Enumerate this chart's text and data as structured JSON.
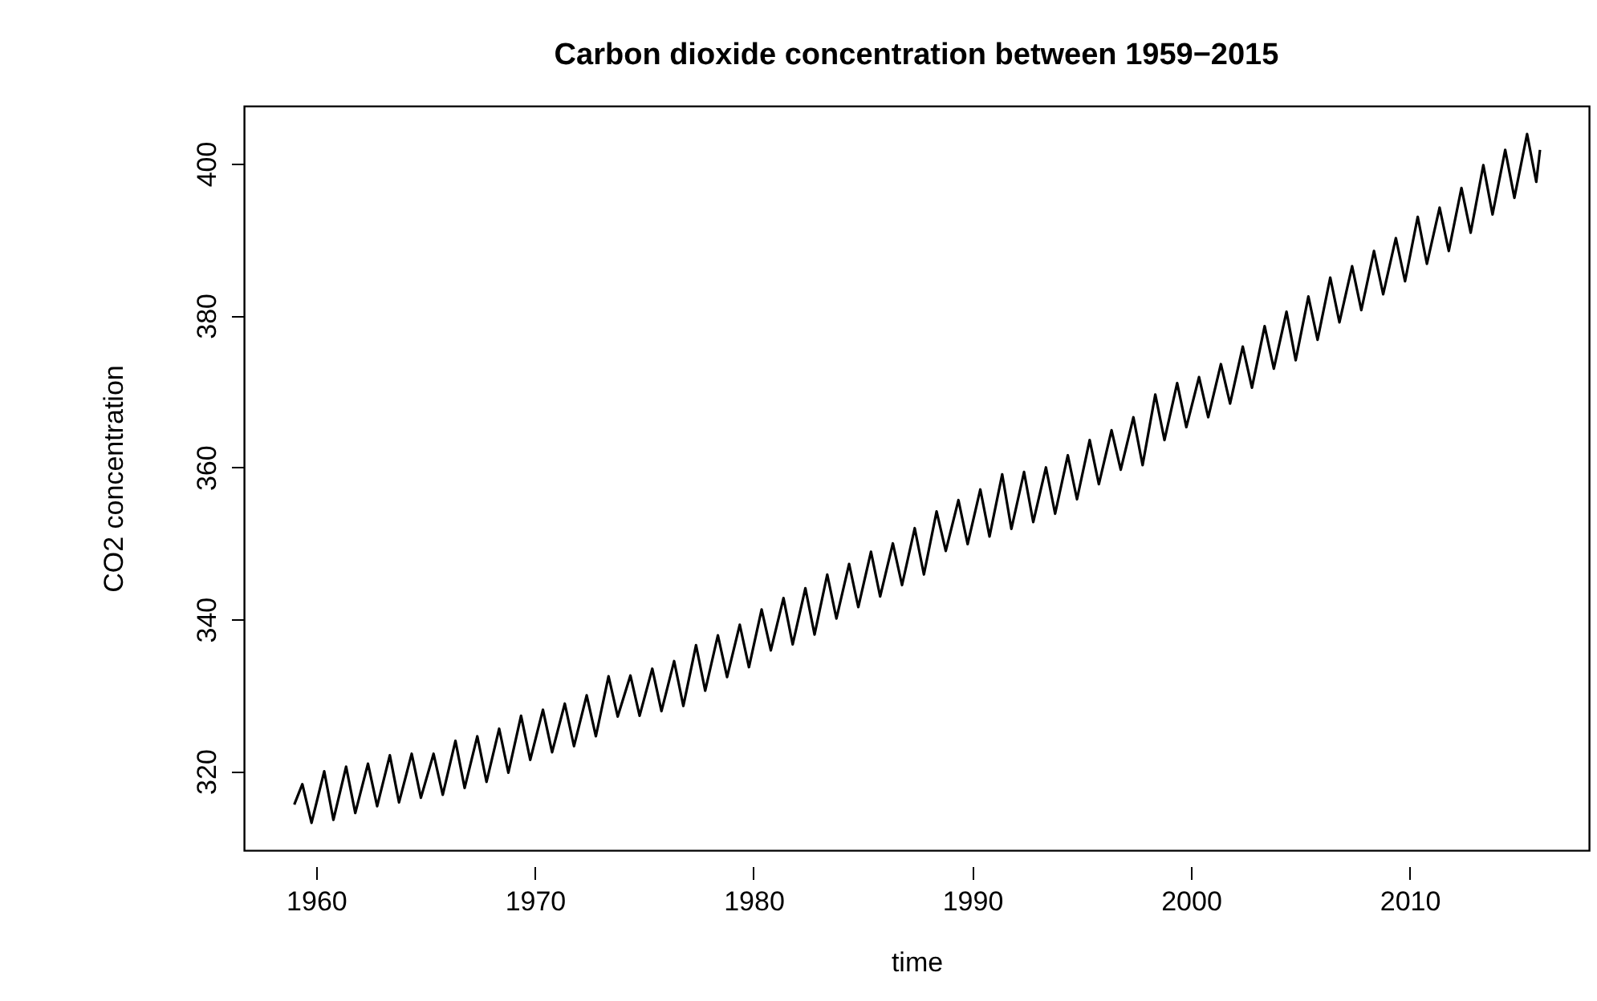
{
  "chart_data": {
    "type": "line",
    "title": "Carbon dioxide concentration between 1959−2015",
    "xlabel": "time",
    "ylabel": "CO2 concentration",
    "xlim": [
      1956.7,
      2018.2
    ],
    "ylim": [
      309.6,
      407.6
    ],
    "xticks": [
      1960,
      1970,
      1980,
      1990,
      2000,
      2010
    ],
    "yticks": [
      320,
      340,
      360,
      380,
      400
    ],
    "grid": false,
    "line_style": "solid",
    "marker": "none",
    "series": [
      {
        "color": "#000000",
        "x": [
          1959.0,
          1959.37,
          1959.79,
          1960.37,
          1960.79,
          1961.37,
          1961.79,
          1962.37,
          1962.79,
          1963.37,
          1963.79,
          1964.37,
          1964.79,
          1965.37,
          1965.79,
          1966.37,
          1966.79,
          1967.37,
          1967.79,
          1968.37,
          1968.79,
          1969.37,
          1969.79,
          1970.37,
          1970.79,
          1971.37,
          1971.79,
          1972.37,
          1972.79,
          1973.37,
          1973.79,
          1974.37,
          1974.79,
          1975.37,
          1975.79,
          1976.37,
          1976.79,
          1977.37,
          1977.79,
          1978.37,
          1978.79,
          1979.37,
          1979.79,
          1980.37,
          1980.79,
          1981.37,
          1981.79,
          1982.37,
          1982.79,
          1983.37,
          1983.79,
          1984.37,
          1984.79,
          1985.37,
          1985.79,
          1986.37,
          1986.79,
          1987.37,
          1987.79,
          1988.37,
          1988.79,
          1989.37,
          1989.79,
          1990.37,
          1990.79,
          1991.37,
          1991.79,
          1992.37,
          1992.79,
          1993.37,
          1993.79,
          1994.37,
          1994.79,
          1995.37,
          1995.79,
          1996.37,
          1996.79,
          1997.37,
          1997.79,
          1998.37,
          1998.79,
          1999.37,
          1999.79,
          2000.37,
          2000.79,
          2001.37,
          2001.79,
          2002.37,
          2002.79,
          2003.37,
          2003.79,
          2004.37,
          2004.79,
          2005.37,
          2005.79,
          2006.37,
          2006.79,
          2007.37,
          2007.79,
          2008.37,
          2008.79,
          2009.37,
          2009.79,
          2010.37,
          2010.79,
          2011.37,
          2011.79,
          2012.37,
          2012.79,
          2013.37,
          2013.79,
          2014.37,
          2014.79,
          2015.37,
          2015.79,
          2015.96
        ],
        "values": [
          315.6,
          318.3,
          313.2,
          320.0,
          313.6,
          320.6,
          314.5,
          321.0,
          315.4,
          322.1,
          315.9,
          322.3,
          316.5,
          322.3,
          316.9,
          324.0,
          317.8,
          324.6,
          318.6,
          325.6,
          319.8,
          327.3,
          321.5,
          328.1,
          322.5,
          328.9,
          323.3,
          330.0,
          324.6,
          332.5,
          327.2,
          332.6,
          327.3,
          333.5,
          327.9,
          334.5,
          328.6,
          336.6,
          330.6,
          337.9,
          332.4,
          339.3,
          333.7,
          341.3,
          335.9,
          342.8,
          336.7,
          344.1,
          338.0,
          345.9,
          340.1,
          347.3,
          341.6,
          348.9,
          343.0,
          350.0,
          344.5,
          352.0,
          345.9,
          354.2,
          349.0,
          355.7,
          349.9,
          357.1,
          350.9,
          359.1,
          351.9,
          359.4,
          352.8,
          360.0,
          353.9,
          361.6,
          355.8,
          363.6,
          357.8,
          364.9,
          359.7,
          366.6,
          360.3,
          369.6,
          363.6,
          371.1,
          365.3,
          371.9,
          366.6,
          373.6,
          368.4,
          375.9,
          370.5,
          378.6,
          373.0,
          380.5,
          374.1,
          382.5,
          376.8,
          385.0,
          379.1,
          386.5,
          380.7,
          388.5,
          382.8,
          390.2,
          384.5,
          393.0,
          386.8,
          394.2,
          388.5,
          396.8,
          390.9,
          399.8,
          393.3,
          401.8,
          395.5,
          403.9,
          397.6,
          401.8
        ]
      }
    ]
  }
}
